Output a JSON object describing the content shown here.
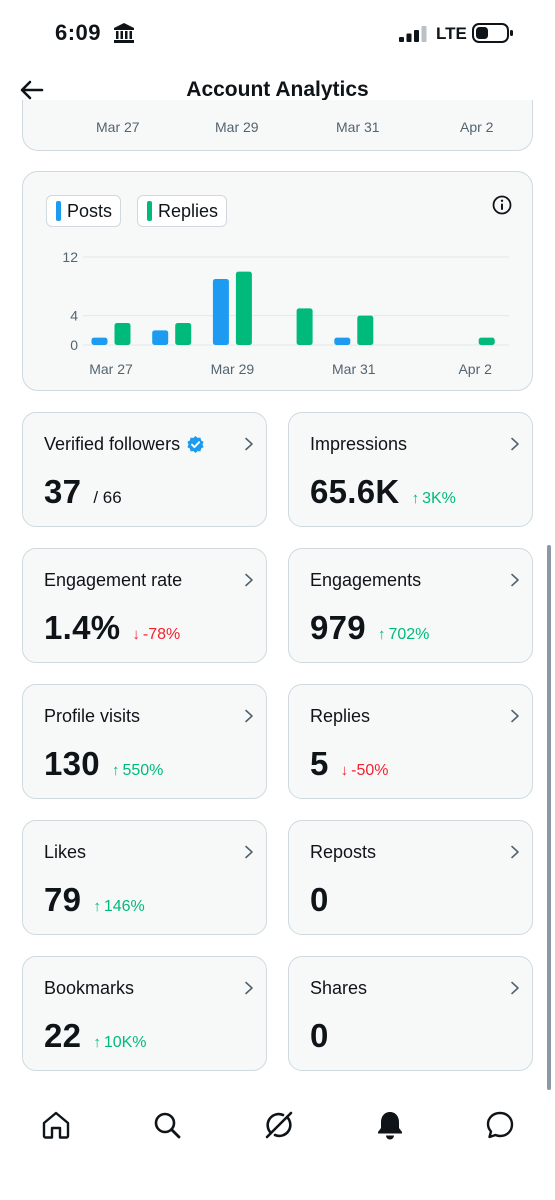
{
  "status_bar": {
    "time": "6:09",
    "network": "LTE",
    "icons": [
      "bank-icon",
      "signal-icon",
      "battery-icon"
    ]
  },
  "header": {
    "title": "Account Analytics",
    "back_icon": "back-arrow-icon"
  },
  "top_chart_axis": {
    "labels": [
      "Mar 27",
      "Mar 29",
      "Mar 31",
      "Apr 2"
    ]
  },
  "activity_chart": {
    "legend": [
      {
        "label": "Posts",
        "color": "#1d9bf0"
      },
      {
        "label": "Replies",
        "color": "#00ba7c"
      }
    ],
    "info_icon": "info-icon",
    "chart_data": {
      "type": "bar",
      "categories": [
        "Mar 27",
        "Mar 28",
        "Mar 29",
        "Mar 30",
        "Mar 31",
        "Apr 1",
        "Apr 2"
      ],
      "x_tick_labels": [
        "Mar 27",
        "Mar 29",
        "Mar 31",
        "Apr 2"
      ],
      "y_tick_labels": [
        "12",
        "4",
        "0"
      ],
      "ylim": [
        0,
        12
      ],
      "grid": true,
      "legend_position": "top-left",
      "series": [
        {
          "name": "Posts",
          "color": "#1d9bf0",
          "values": [
            1,
            2,
            9,
            0,
            1,
            0,
            0
          ]
        },
        {
          "name": "Replies",
          "color": "#00ba7c",
          "values": [
            3,
            3,
            10,
            5,
            4,
            0,
            1
          ]
        }
      ]
    }
  },
  "metrics": [
    {
      "label": "Verified followers",
      "value": "37",
      "sub": "/ 66",
      "change": "",
      "direction": "",
      "verified": true
    },
    {
      "label": "Impressions",
      "value": "65.6K",
      "sub": "",
      "change": "3K%",
      "direction": "up"
    },
    {
      "label": "Engagement rate",
      "value": "1.4%",
      "sub": "",
      "change": "-78%",
      "direction": "down"
    },
    {
      "label": "Engagements",
      "value": "979",
      "sub": "",
      "change": "702%",
      "direction": "up"
    },
    {
      "label": "Profile visits",
      "value": "130",
      "sub": "",
      "change": "550%",
      "direction": "up"
    },
    {
      "label": "Replies",
      "value": "5",
      "sub": "",
      "change": "-50%",
      "direction": "down"
    },
    {
      "label": "Likes",
      "value": "79",
      "sub": "",
      "change": "146%",
      "direction": "up"
    },
    {
      "label": "Reposts",
      "value": "0",
      "sub": "",
      "change": "",
      "direction": ""
    },
    {
      "label": "Bookmarks",
      "value": "22",
      "sub": "",
      "change": "10K%",
      "direction": "up"
    },
    {
      "label": "Shares",
      "value": "0",
      "sub": "",
      "change": "",
      "direction": ""
    }
  ],
  "colors": {
    "up": "#00ba7c",
    "down": "#f4212e",
    "accent": "#1d9bf0"
  },
  "bottom_nav": {
    "items": [
      "home-icon",
      "search-icon",
      "grok-icon",
      "notifications-icon",
      "messages-icon"
    ]
  }
}
